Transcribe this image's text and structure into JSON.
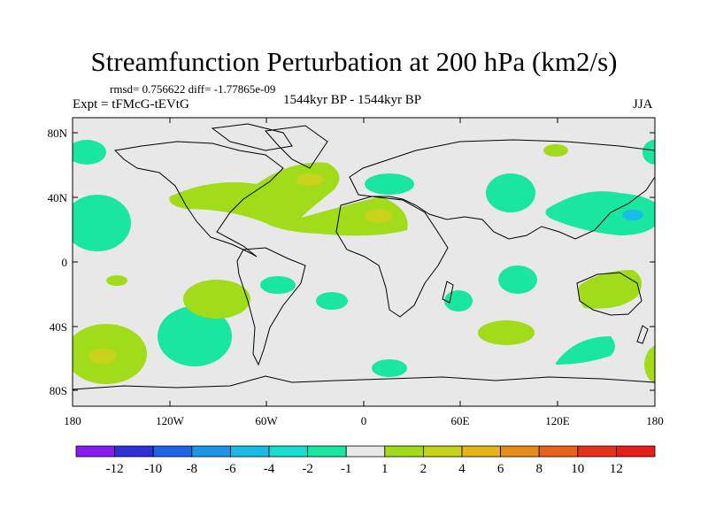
{
  "title": "Streamfunction Perturbation at 200 hPa (km2/s)",
  "stats": "rmsd= 0.756622 diff= -1.77865e-09",
  "experiment": "Expt = tFMcG-tEVtG",
  "period": "1544kyr BP - 1544kyr BP",
  "season": "JJA",
  "axes": {
    "y_labels": [
      "80N",
      "40N",
      "0",
      "40S",
      "80S"
    ],
    "x_labels": [
      "180",
      "120W",
      "60W",
      "0",
      "60E",
      "120E",
      "180"
    ]
  },
  "colorbar": {
    "labels": [
      "-12",
      "-10",
      "-8",
      "-6",
      "-4",
      "-2",
      "-1",
      "1",
      "2",
      "4",
      "6",
      "8",
      "10",
      "12"
    ],
    "colors": [
      "#8a1cf0",
      "#2f2fd8",
      "#1e64e6",
      "#1e96e6",
      "#19bce6",
      "#19dcd2",
      "#19e6a0",
      "#e8e8e8",
      "#a0dc19",
      "#c8d219",
      "#e6b419",
      "#e68c19",
      "#e66419",
      "#e63219",
      "#e61e19"
    ]
  },
  "colors": {
    "background": "#e8e8e8",
    "cyan": "#19e6a0",
    "teal": "#19dcd2",
    "blue": "#1e96e6",
    "green": "#a0dc19",
    "olive": "#c8d219"
  }
}
